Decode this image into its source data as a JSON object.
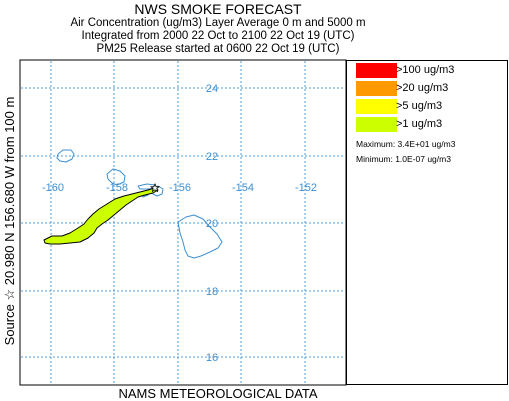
{
  "header": {
    "title": "NWS SMOKE FORECAST",
    "line1": "Air Concentration (ug/m3) Layer Average     0 m and  5000 m",
    "line2": "Integrated from 2000 22 Oct to 2100 22 Oct 19 (UTC)",
    "line3": "PM25 Release started at 0600 22 Oct 19 (UTC)"
  },
  "side_label": "Source ☆  20.980 N 156.680  W     from  100 m",
  "footer": "NAMS METEOROLOGICAL DATA",
  "map": {
    "lon_labels": [
      "-160",
      "-158",
      "-156",
      "-154",
      "-152"
    ],
    "lat_labels": [
      "24",
      "22",
      "20",
      "18",
      "16"
    ],
    "grid_color": "#4f9fd8",
    "coast_color": "#3d8fd0",
    "source": {
      "lon": -156.68,
      "lat": 20.98
    }
  },
  "legend": {
    "items": [
      {
        "label": ">100 ug/m3",
        "color": "#ff0000"
      },
      {
        "label": ">20 ug/m3",
        "color": "#ff9900"
      },
      {
        "label": ">5 ug/m3",
        "color": "#ffff00"
      },
      {
        "label": ">1 ug/m3",
        "color": "#ccff00"
      }
    ],
    "maximum": "Maximum: 3.4E+01 ug/m3",
    "minimum": "Minimum: 1.0E-07 ug/m3"
  }
}
